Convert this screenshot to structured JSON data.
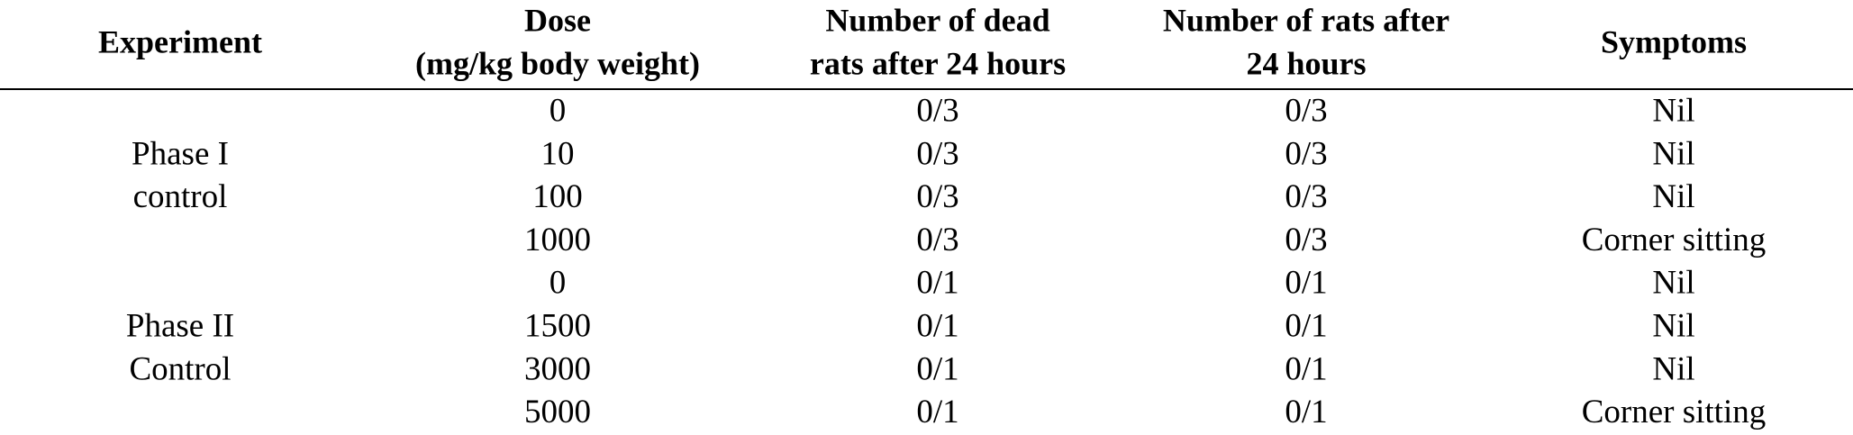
{
  "table": {
    "header": [
      [
        "Experiment"
      ],
      [
        "Dose",
        "(mg/kg body weight)"
      ],
      [
        "Number of dead",
        "rats after 24 hours"
      ],
      [
        "Number of rats after",
        "24 hours"
      ],
      [
        "Symptoms"
      ]
    ],
    "groups": [
      {
        "experiment": [
          "Phase I",
          "control"
        ],
        "rows": [
          [
            0,
            "0/3",
            "0/3",
            "Nil"
          ],
          [
            10,
            "0/3",
            "0/3",
            "Nil"
          ],
          [
            100,
            "0/3",
            "0/3",
            "Nil"
          ],
          [
            1000,
            "0/3",
            "0/3",
            "Corner sitting"
          ]
        ]
      },
      {
        "experiment": [
          "Phase II",
          "Control"
        ],
        "rows": [
          [
            0,
            "0/1",
            "0/1",
            "Nil"
          ],
          [
            1500,
            "0/1",
            "0/1",
            "Nil"
          ],
          [
            3000,
            "0/1",
            "0/1",
            "Nil"
          ],
          [
            5000,
            "0/1",
            "0/1",
            "Corner sitting"
          ]
        ]
      }
    ]
  }
}
